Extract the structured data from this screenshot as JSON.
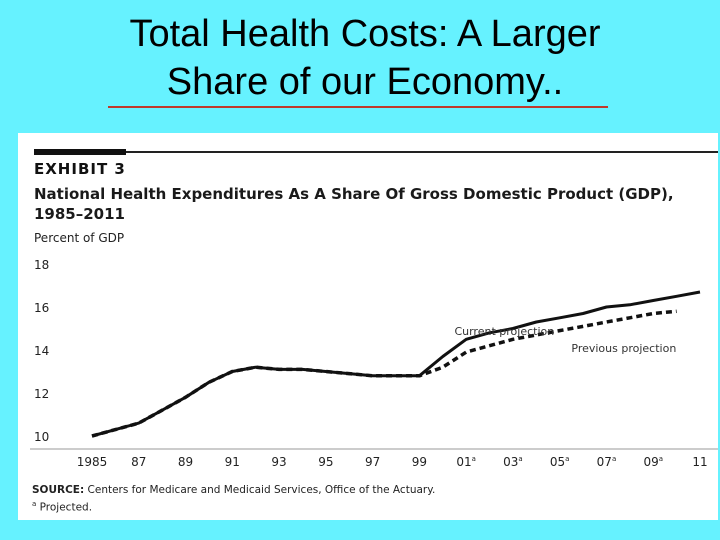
{
  "slide": {
    "title_line1": "Total Health Costs: A Larger",
    "title_line2": "Share of our Economy.."
  },
  "colors": {
    "background": "#66F2FF",
    "title_rule": "#C0392B",
    "panel": "#FFFFFF",
    "series": "#111111"
  },
  "chart_data": {
    "type": "line",
    "exhibit_label": "EXHIBIT 3",
    "title": "National Health Expenditures As A Share Of Gross Domestic Product (GDP), 1985–2011",
    "ylabel": "Percent of GDP",
    "xlabel": "",
    "ylim": [
      10,
      18
    ],
    "xlim": [
      1985,
      2011
    ],
    "y_ticks": [
      "18",
      "16",
      "14",
      "12",
      "10"
    ],
    "x_ticks": [
      {
        "label": "1985",
        "year": 1985,
        "projected": false
      },
      {
        "label": "87",
        "year": 1987,
        "projected": false
      },
      {
        "label": "89",
        "year": 1989,
        "projected": false
      },
      {
        "label": "91",
        "year": 1991,
        "projected": false
      },
      {
        "label": "93",
        "year": 1993,
        "projected": false
      },
      {
        "label": "95",
        "year": 1995,
        "projected": false
      },
      {
        "label": "97",
        "year": 1997,
        "projected": false
      },
      {
        "label": "99",
        "year": 1999,
        "projected": false
      },
      {
        "label": "01",
        "year": 2001,
        "projected": true
      },
      {
        "label": "03",
        "year": 2003,
        "projected": true
      },
      {
        "label": "05",
        "year": 2005,
        "projected": true
      },
      {
        "label": "07",
        "year": 2007,
        "projected": true
      },
      {
        "label": "09",
        "year": 2009,
        "projected": true
      },
      {
        "label": "11",
        "year": 2011,
        "projected": false
      }
    ],
    "grid": false,
    "series": [
      {
        "name": "Current projection",
        "style": "solid",
        "x": [
          1985,
          1986,
          1987,
          1988,
          1989,
          1990,
          1991,
          1992,
          1993,
          1994,
          1995,
          1996,
          1997,
          1998,
          1999,
          2000,
          2001,
          2002,
          2003,
          2004,
          2005,
          2006,
          2007,
          2008,
          2009,
          2010,
          2011
        ],
        "values": [
          10.0,
          10.3,
          10.6,
          11.2,
          11.8,
          12.5,
          13.0,
          13.2,
          13.1,
          13.1,
          13.0,
          12.9,
          12.8,
          12.8,
          12.8,
          13.7,
          14.5,
          14.8,
          15.0,
          15.3,
          15.5,
          15.7,
          16.0,
          16.1,
          16.3,
          16.5,
          16.7
        ]
      },
      {
        "name": "Previous projection",
        "style": "dashed",
        "x": [
          1985,
          1986,
          1987,
          1988,
          1989,
          1990,
          1991,
          1992,
          1993,
          1994,
          1995,
          1996,
          1997,
          1998,
          1999,
          2000,
          2001,
          2002,
          2003,
          2004,
          2005,
          2006,
          2007,
          2008,
          2009,
          2010
        ],
        "values": [
          10.0,
          10.3,
          10.6,
          11.2,
          11.8,
          12.5,
          13.0,
          13.2,
          13.1,
          13.1,
          13.0,
          12.9,
          12.8,
          12.8,
          12.8,
          13.2,
          13.9,
          14.2,
          14.5,
          14.7,
          14.9,
          15.1,
          15.3,
          15.5,
          15.7,
          15.8
        ]
      }
    ],
    "series_labels": [
      {
        "text": "Current projection",
        "x": 2000.5,
        "y": 14.7
      },
      {
        "text": "Previous projection",
        "x": 2005.5,
        "y": 13.9
      }
    ],
    "source_label": "SOURCE:",
    "source_text": "Centers for Medicare and Medicaid Services, Office of the Actuary.",
    "footnote_marker": "a",
    "footnote_text": "Projected.",
    "projected_marker": "a"
  }
}
